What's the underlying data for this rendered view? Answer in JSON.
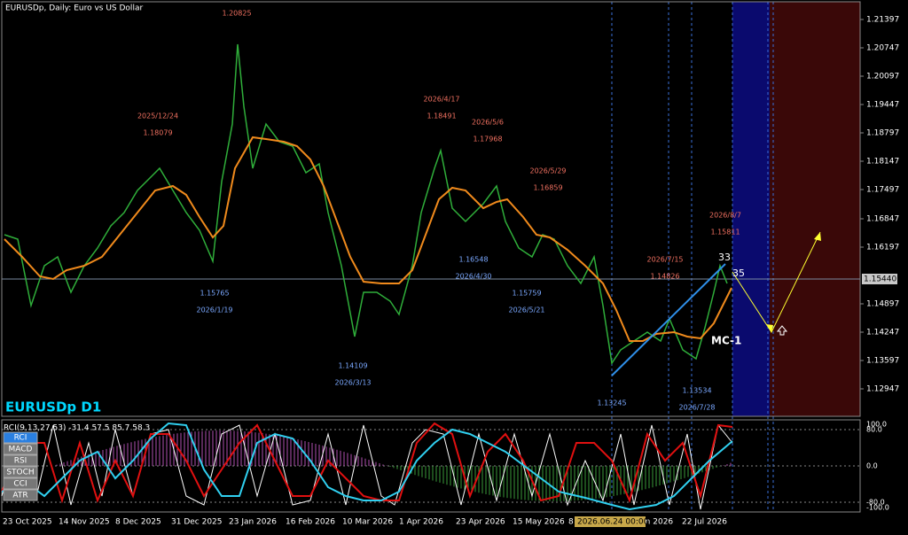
{
  "header": {
    "title": "EURUSDp, Daily:  Euro vs US Dollar",
    "watermark": "EURUSDp D1"
  },
  "price_axis": {
    "labels": [
      "1.21397",
      "1.20747",
      "1.20097",
      "1.19447",
      "1.18797",
      "1.18147",
      "1.17497",
      "1.16847",
      "1.16197",
      "1.14897",
      "1.14247",
      "1.13597",
      "1.12947"
    ],
    "current": "1.15440"
  },
  "annotations": [
    {
      "text": [
        "1.20825"
      ]
    },
    {
      "text": [
        "2025/12/24",
        "1.18079"
      ]
    },
    {
      "text": [
        "2026/4/17",
        "1.18491"
      ]
    },
    {
      "text": [
        "2026/5/6",
        "1.17968"
      ]
    },
    {
      "text": [
        "2026/5/29",
        "1.16859"
      ]
    },
    {
      "text": [
        "2026/8/7",
        "1.15811"
      ]
    },
    {
      "text": [
        "2026/7/15",
        "1.14826"
      ]
    },
    {
      "text": [
        "1.15765",
        "2026/1/19"
      ]
    },
    {
      "text": [
        "1.16548",
        "2026/4/30"
      ]
    },
    {
      "text": [
        "1.15759",
        "2026/5/21"
      ]
    },
    {
      "text": [
        "1.14109",
        "2026/3/13"
      ]
    },
    {
      "text": [
        "1.13245"
      ]
    },
    {
      "text": [
        "1.13534",
        "2026/7/28"
      ]
    }
  ],
  "wave_labels": [
    "33",
    "35",
    "MC-1"
  ],
  "indicator": {
    "title": "RCI(9,13,27,53) -31.4 57.5 85.7 58.3",
    "buttons": [
      "RCI",
      "MACD",
      "RSI",
      "STOCH",
      "CCI",
      "ATR"
    ],
    "scale": [
      "100.0",
      "80.0",
      "0.0",
      "-80.0",
      "-100.0"
    ]
  },
  "time_axis": {
    "labels": [
      "23 Oct 2025",
      "14 Nov 2025",
      "8 Dec 2025",
      "31 Dec 2025",
      "23 Jan 2026",
      "16 Feb 2026",
      "10 Mar 2026",
      "1 Apr 2026",
      "23 Apr 2026",
      "15 May 2026",
      "8 Jun 2026",
      "30 Jun 2026",
      "22 Jul 2026"
    ],
    "cursor": "2026.06.24 00:00"
  }
}
